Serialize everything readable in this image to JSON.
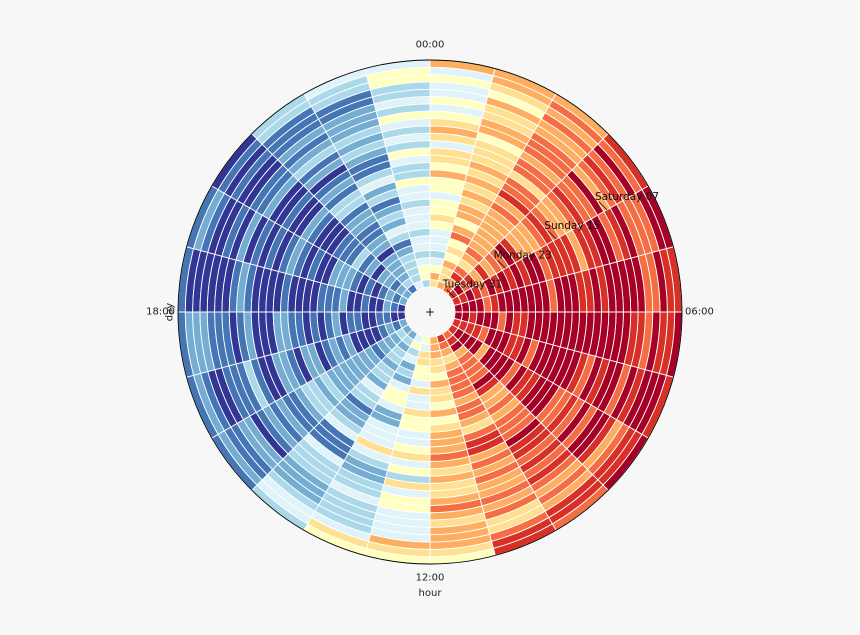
{
  "chart_data": {
    "type": "heatmap",
    "subtype": "polar",
    "title": "",
    "angular_axis": {
      "label": "hour",
      "direction": "clockwise",
      "zero_location": "top",
      "tick_labels": [
        "00:00",
        "06:00",
        "12:00",
        "18:00"
      ],
      "segments": 24
    },
    "radial_axis": {
      "label": "day",
      "rings": 31,
      "inner": "day 31",
      "outer": "day 1"
    },
    "colormap": "RdYlBu_r",
    "colors": [
      "#313695",
      "#4575b4",
      "#74add1",
      "#abd9e9",
      "#e0f3f8",
      "#ffffbf",
      "#fee090",
      "#fdae61",
      "#f46d43",
      "#d73027",
      "#a50026"
    ],
    "center_marker": "+",
    "annotations": [
      {
        "text": "Saturday 07",
        "day": 7,
        "hour": 4
      },
      {
        "text": "Sunday 15",
        "day": 15,
        "hour": 4
      },
      {
        "text": "Monday 23",
        "day": 23,
        "hour": 4
      },
      {
        "text": "Tuesday 31",
        "day": 31,
        "hour": 4
      }
    ],
    "grid": false,
    "legend": "none"
  }
}
